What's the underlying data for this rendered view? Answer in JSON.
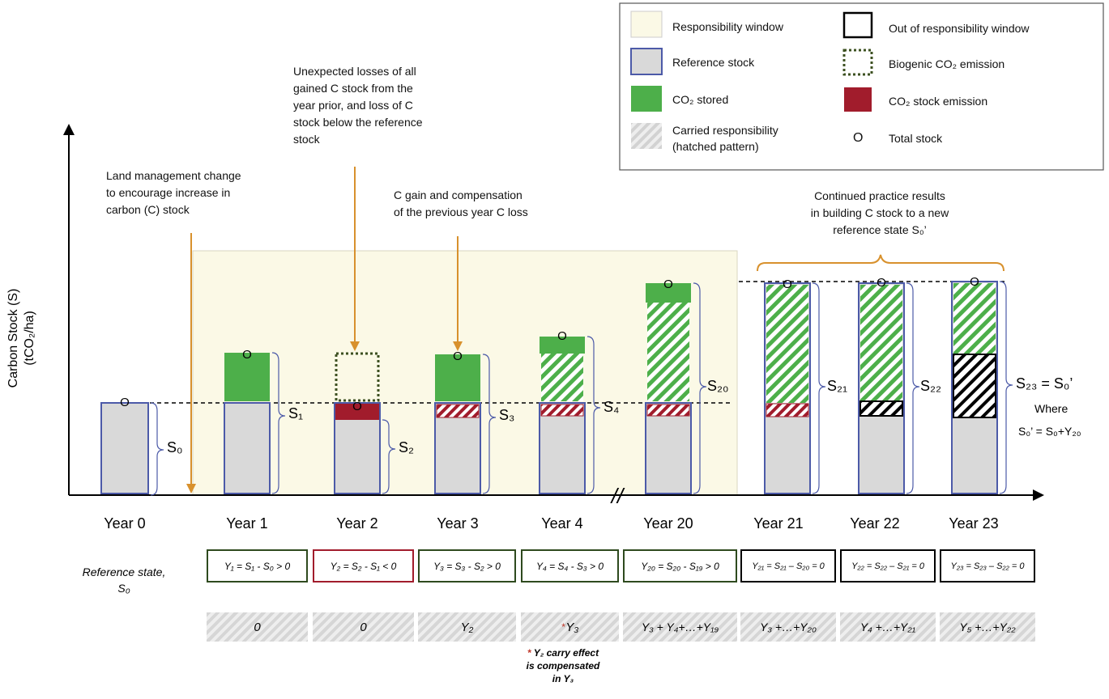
{
  "colors": {
    "responsibility_window": "#fbf9e6",
    "reference_stock_fill": "#d9d9d9",
    "reference_stock_border": "#4c5aa8",
    "co2_stored": "#4daf4a",
    "co2_stock_emission": "#a11c2c",
    "biogenic_border": "#3c5020",
    "arrow": "#d8912d",
    "eq_positive_border": "#2e4a1e",
    "eq_negative_border": "#a11c2c",
    "eq_out_border": "#000000"
  },
  "axis": {
    "ylabel_line1": "Carbon Stock (S)",
    "ylabel_line2": "(tCO₂/ha)"
  },
  "legend": {
    "responsibility_window": "Responsibility window",
    "reference_stock": "Reference stock",
    "co2_stored": "CO₂ stored",
    "carried_responsibility_1": "Carried responsibility",
    "carried_responsibility_2": "(hatched pattern)",
    "out_of_window": "Out of responsibility window",
    "biogenic_emission": "Biogenic CO₂ emission",
    "stock_emission": "CO₂ stock emission",
    "total_stock_symbol": "O",
    "total_stock": "Total stock"
  },
  "annotations": {
    "land_mgmt": [
      "Land management change",
      "to encourage increase in",
      "carbon (C) stock"
    ],
    "losses": [
      "Unexpected losses of all",
      "gained C stock from the",
      "year prior, and loss of C",
      "stock below the reference",
      "stock"
    ],
    "gain": [
      "C gain and compensation",
      "of the previous year C loss"
    ],
    "continued": [
      "Continued practice results",
      "in building C stock to a new",
      "reference state S₀’"
    ]
  },
  "years": [
    {
      "label": "Year 0",
      "stock": "S₀"
    },
    {
      "label": "Year 1",
      "stock": "S₁"
    },
    {
      "label": "Year 2",
      "stock": "S₂"
    },
    {
      "label": "Year 3",
      "stock": "S₃"
    },
    {
      "label": "Year 4",
      "stock": "S₄"
    },
    {
      "label": "Year 20",
      "stock": "S₂₀"
    },
    {
      "label": "Year 21",
      "stock": "S₂₁"
    },
    {
      "label": "Year 22",
      "stock": "S₂₂"
    },
    {
      "label": "Year 23",
      "stock": "S₂₃ = S₀’"
    }
  ],
  "total_stock_marker": "O",
  "where_label": "Where",
  "where_eq": "S₀’ = S₀+Y₂₀",
  "reference_state": [
    "Reference state,",
    "S₀"
  ],
  "equations": [
    "Y₁ = S₁ - S₀ > 0",
    "Y₂ = S₂ - S₁ < 0",
    "Y₃ = S₃ - S₂ > 0",
    "Y₄ = S₄ - S₃ > 0",
    "Y₂₀ = S₂₀ - S₁₉ > 0",
    "Y₂₁ = S₂₁ – S₂₀ = 0",
    "Y₂₂ = S₂₂ – S₂₁ = 0",
    "Y₂₃ = S₂₃ – S₂₂ = 0"
  ],
  "carried": [
    "0",
    "0",
    "Y₂",
    "Y₃",
    "Y₃ + Y₄+…+Y₁₉",
    "Y₃ +…+Y₂₀",
    "Y₄ +…+Y₂₁",
    "Y₅ +…+Y₂₂"
  ],
  "carried_star": "*",
  "footnote": {
    "star": "*",
    "lines": [
      "Y₂ carry effect",
      "is compensated",
      "in Y₃"
    ]
  },
  "axis_break": "//"
}
